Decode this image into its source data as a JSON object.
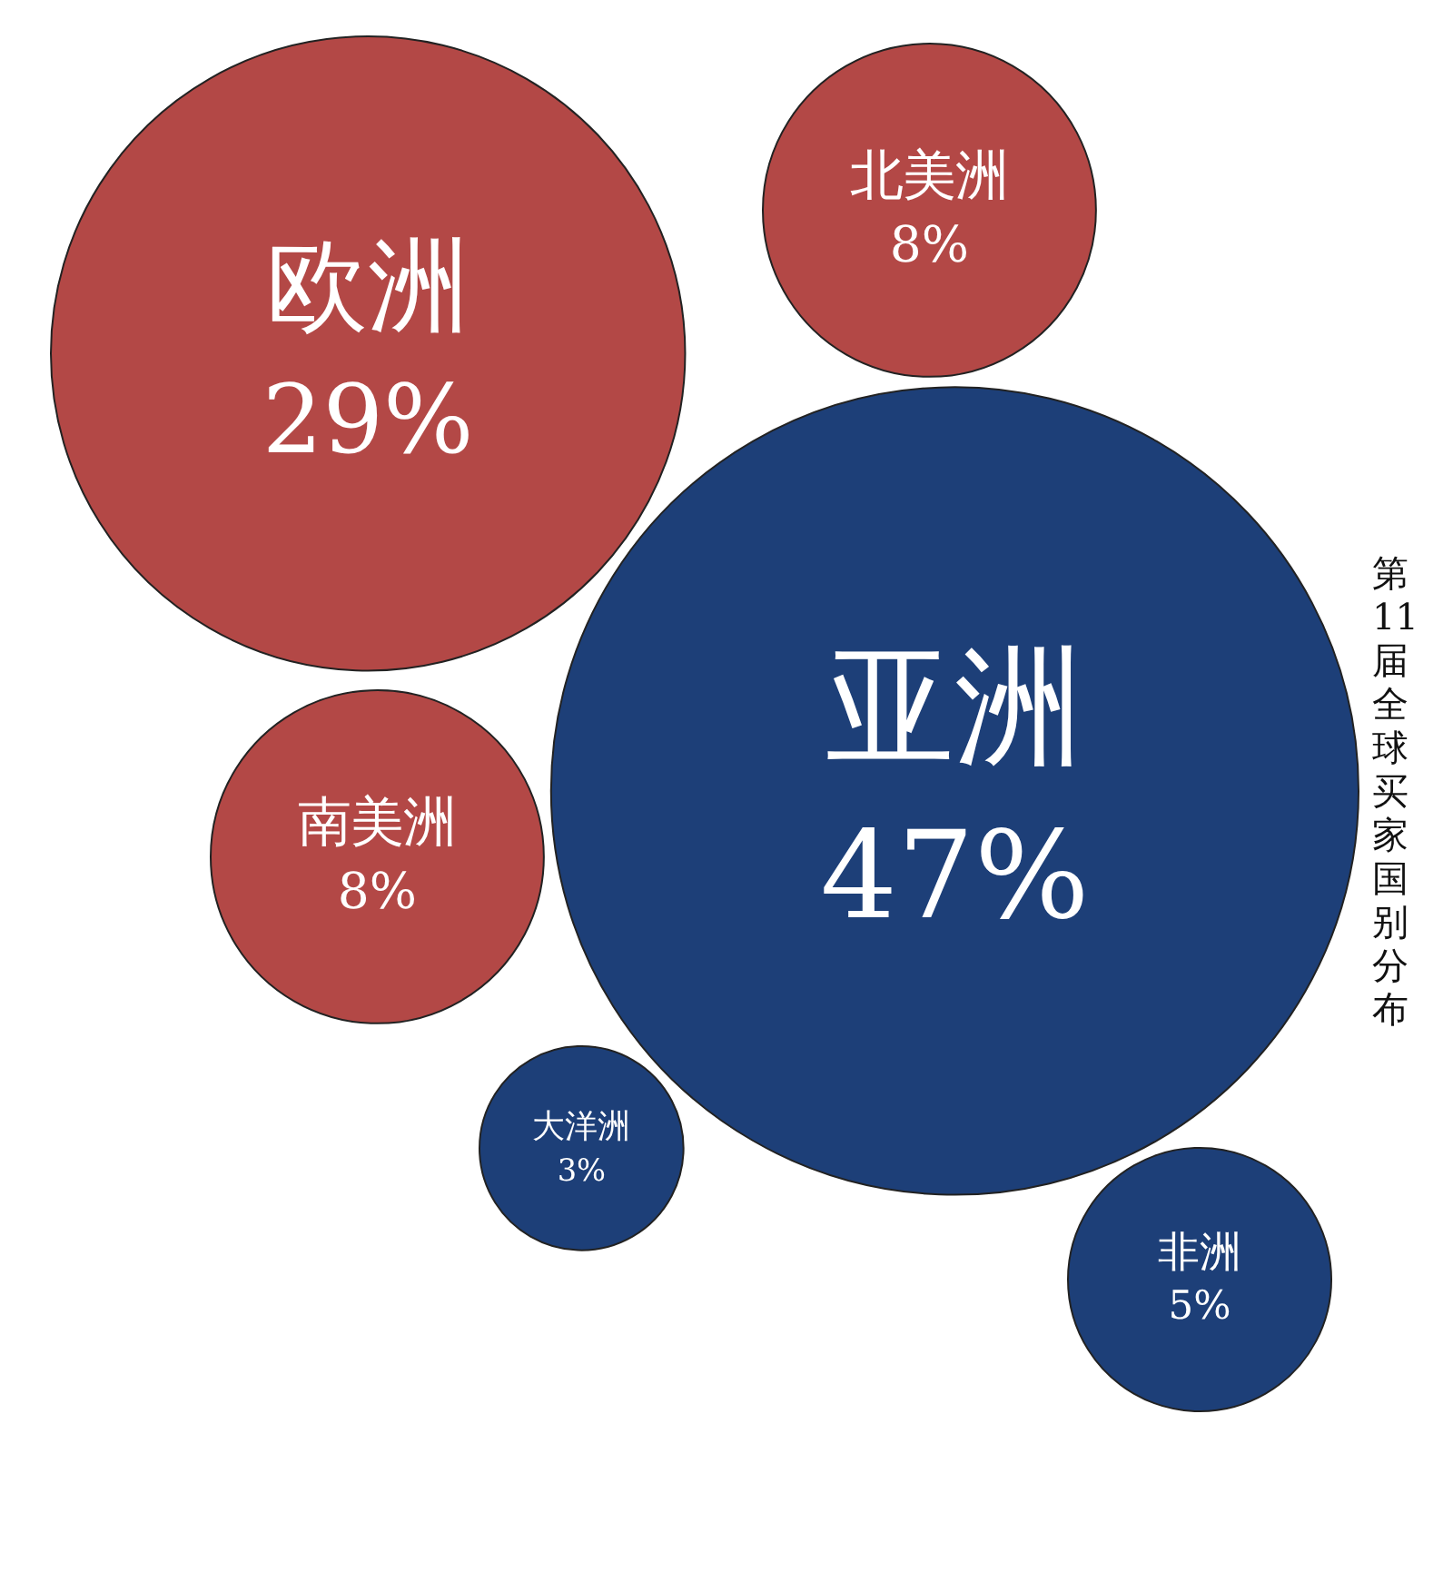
{
  "chart_data": {
    "type": "other",
    "title": "第11届全球买家国别分布",
    "categories": [
      "亚洲",
      "欧洲",
      "南美洲",
      "北美洲",
      "非洲",
      "大洋洲"
    ],
    "values": [
      47,
      29,
      8,
      8,
      5,
      3
    ],
    "colors": [
      "#1d3f78",
      "#b34846",
      "#b34846",
      "#b34846",
      "#1d3f78",
      "#1d3f78"
    ],
    "value_labels": [
      "47%",
      "29%",
      "8%",
      "8%",
      "5%",
      "3%"
    ]
  }
}
